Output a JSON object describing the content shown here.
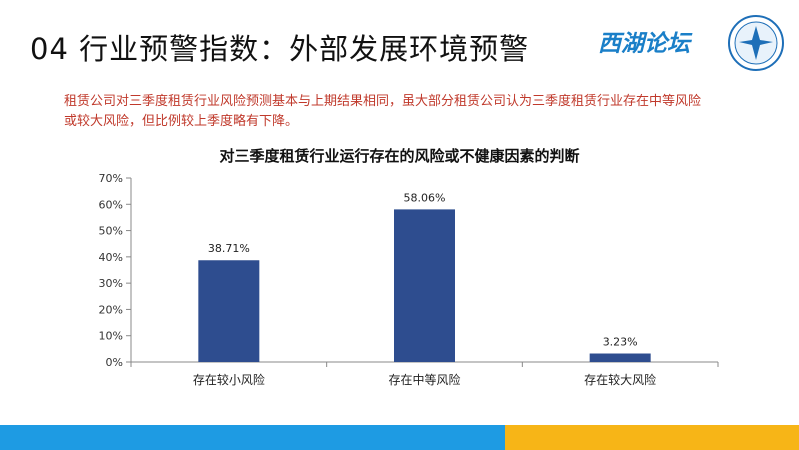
{
  "slide": {
    "title": "04 行业预警指数：外部发展环境预警",
    "logo_text": "西湖论坛",
    "summary": "租赁公司对三季度租赁行业风险预测基本与上期结果相同，虽大部分租赁公司认为三季度租赁行业存在中等风险或较大风险，但比例较上季度略有下降。"
  },
  "colors": {
    "bar": "#2e4d8f",
    "title_red": "#c0392b",
    "footer_blue": "#1e9be3",
    "footer_yellow": "#f7b517"
  },
  "chart_data": {
    "type": "bar",
    "title": "对三季度租赁行业运行存在的风险或不健康因素的判断",
    "categories": [
      "存在较小风险",
      "存在中等风险",
      "存在较大风险"
    ],
    "values": [
      38.71,
      58.06,
      3.23
    ],
    "value_labels": [
      "38.71%",
      "58.06%",
      "3.23%"
    ],
    "ylim": [
      0,
      70
    ],
    "yticks": [
      0,
      10,
      20,
      30,
      40,
      50,
      60,
      70
    ],
    "ytick_labels": [
      "0%",
      "10%",
      "20%",
      "30%",
      "40%",
      "50%",
      "60%",
      "70%"
    ],
    "grid": false
  }
}
